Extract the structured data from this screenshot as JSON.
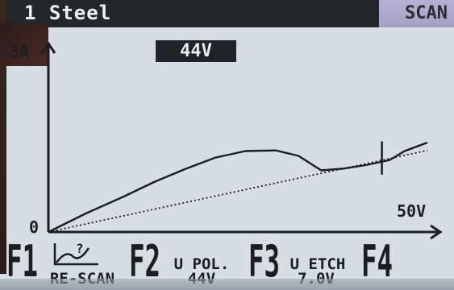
{
  "header": {
    "title": "1 Steel",
    "mode": "SCAN"
  },
  "readout": {
    "voltage": "44V"
  },
  "chart_data": {
    "type": "line",
    "title": "",
    "xlabel": "",
    "ylabel": "",
    "y_max_label": "3A",
    "x_max_label": "50V",
    "origin_label": "0",
    "xlim": [
      0,
      50
    ],
    "ylim": [
      0,
      3
    ],
    "series": [
      {
        "style": "solid",
        "x": [
          0,
          5,
          10,
          14,
          18,
          22,
          26,
          30,
          33,
          36,
          39,
          42,
          45,
          47,
          50
        ],
        "y": [
          0,
          0.31,
          0.59,
          0.83,
          1.04,
          1.23,
          1.34,
          1.35,
          1.26,
          1.02,
          1.05,
          1.11,
          1.19,
          1.34,
          1.48
        ]
      },
      {
        "style": "dotted",
        "x": [
          0,
          50
        ],
        "y": [
          0,
          1.35
        ]
      }
    ],
    "marker_x": 44,
    "grid": false
  },
  "fkeys": [
    {
      "key": "F1",
      "icon": "rescan-icon",
      "label": "RE-SCAN"
    },
    {
      "key": "F2",
      "label": "U POL.",
      "value": "44V"
    },
    {
      "key": "F3",
      "label": "U ETCH",
      "value": "7.0V"
    },
    {
      "key": "F4",
      "label": ""
    }
  ]
}
